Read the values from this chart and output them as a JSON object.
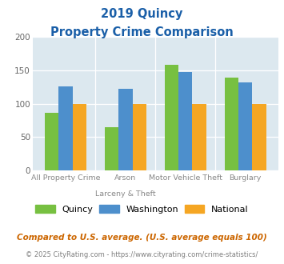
{
  "title_line1": "2019 Quincy",
  "title_line2": "Property Crime Comparison",
  "cat_labels_line1": [
    "All Property Crime",
    "Arson",
    "Motor Vehicle Theft",
    "Burglary"
  ],
  "cat_labels_line2": [
    "",
    "Larceny & Theft",
    "",
    ""
  ],
  "quincy": [
    86,
    65,
    158,
    139
  ],
  "washington": [
    126,
    122,
    147,
    132
  ],
  "national": [
    100,
    100,
    100,
    100
  ],
  "colors": {
    "quincy": "#77c041",
    "washington": "#4d8fcc",
    "national": "#f5a623"
  },
  "ylim": [
    0,
    200
  ],
  "yticks": [
    0,
    50,
    100,
    150,
    200
  ],
  "bg_color": "#dce8ef",
  "title_color": "#1a5fa8",
  "xlabel_color": "#888888",
  "footnote1": "Compared to U.S. average. (U.S. average equals 100)",
  "footnote2": "© 2025 CityRating.com - https://www.cityrating.com/crime-statistics/",
  "footnote1_color": "#cc6600",
  "footnote2_color": "#7f7f7f",
  "legend_labels": [
    "Quincy",
    "Washington",
    "National"
  ]
}
